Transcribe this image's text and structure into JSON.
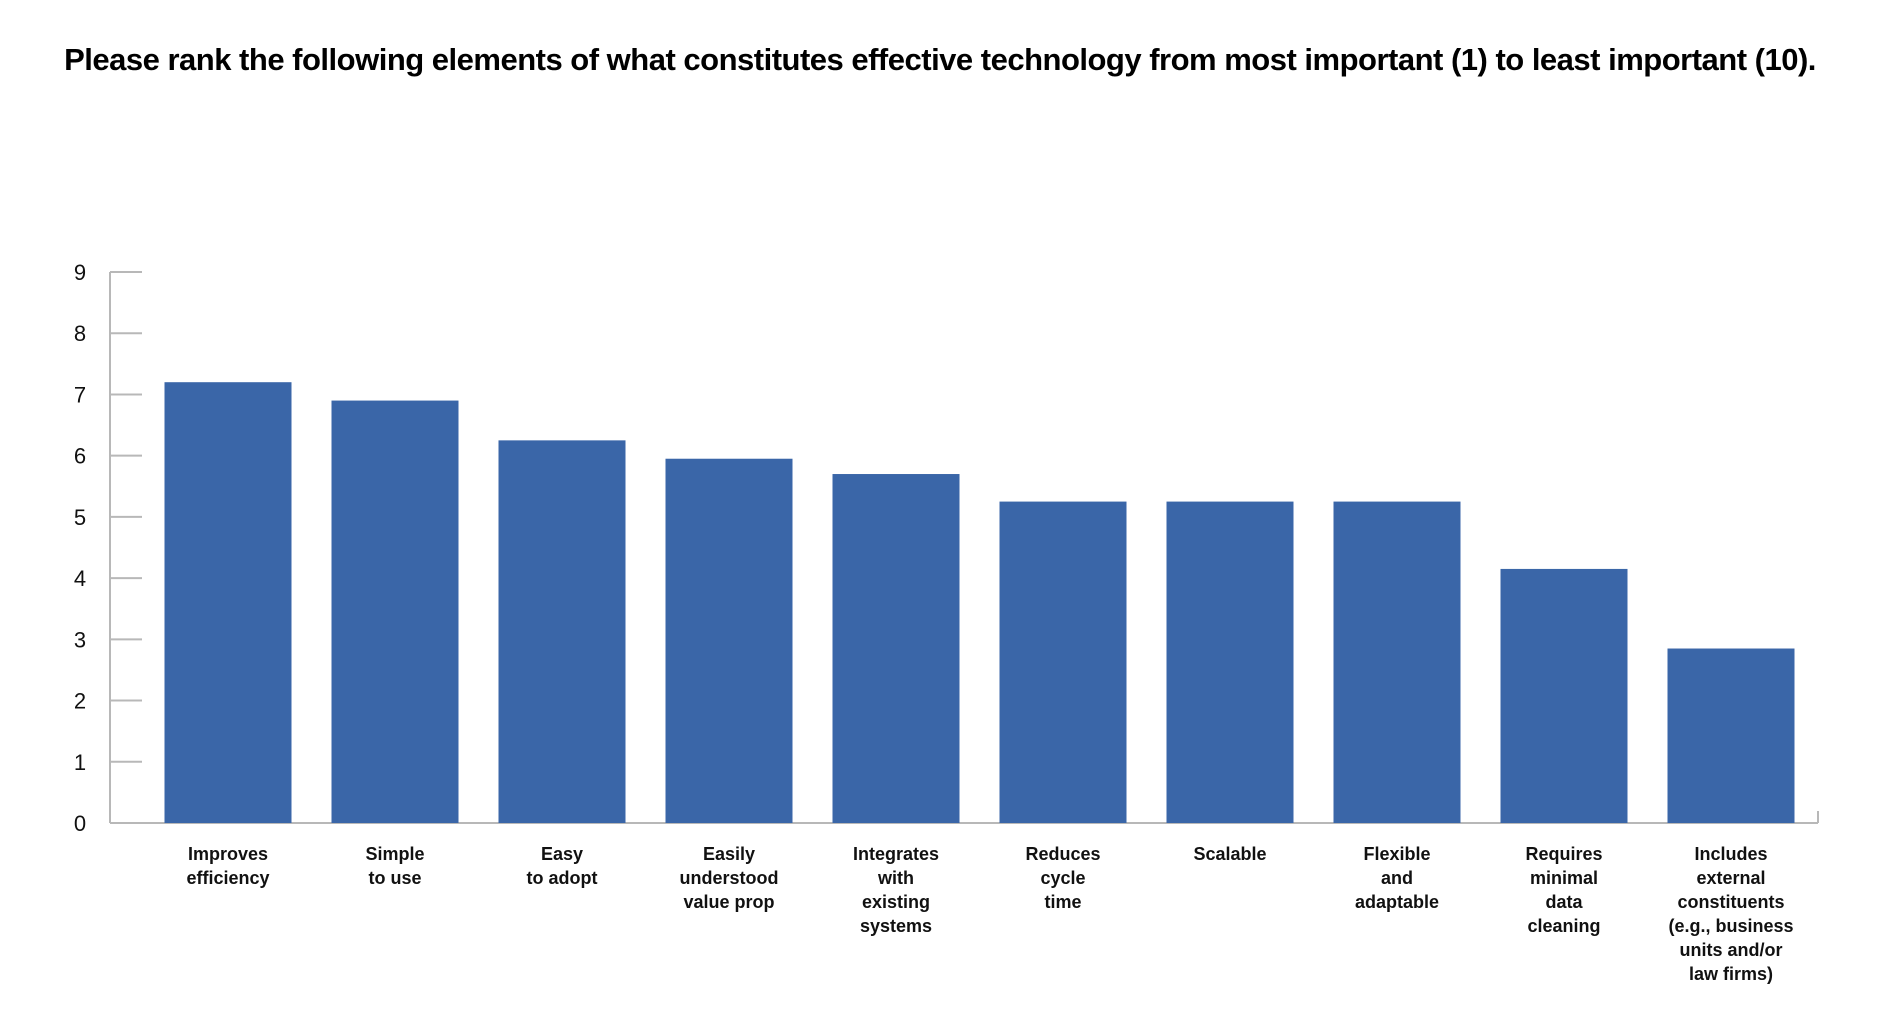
{
  "chart_data": {
    "type": "bar",
    "title": "Please rank the following elements of what constitutes effective technology from most important (1) to least important (10).",
    "categories": [
      [
        "Improves",
        "efficiency"
      ],
      [
        "Simple",
        "to use"
      ],
      [
        "Easy",
        "to adopt"
      ],
      [
        "Easily",
        "understood",
        "value prop"
      ],
      [
        "Integrates",
        "with",
        "existing",
        "systems"
      ],
      [
        "Reduces",
        "cycle",
        "time"
      ],
      [
        "Scalable"
      ],
      [
        "Flexible",
        "and",
        "adaptable"
      ],
      [
        "Requires",
        "minimal",
        "data",
        "cleaning"
      ],
      [
        "Includes",
        "external",
        "constituents",
        "(e.g., business",
        "units and/or",
        "law firms)"
      ]
    ],
    "values": [
      7.2,
      6.9,
      6.25,
      5.95,
      5.7,
      5.25,
      5.25,
      5.25,
      4.15,
      2.85
    ],
    "y_ticks": [
      "0",
      "1",
      "2",
      "3",
      "4",
      "5",
      "6",
      "7",
      "8",
      "9"
    ],
    "ylim": [
      0,
      9
    ],
    "xlabel": "",
    "ylabel": "",
    "grid": false,
    "legend": "none",
    "colors": {
      "bar": "#3A66A8",
      "axis": "#B8B8B8",
      "text": "#111111"
    }
  }
}
